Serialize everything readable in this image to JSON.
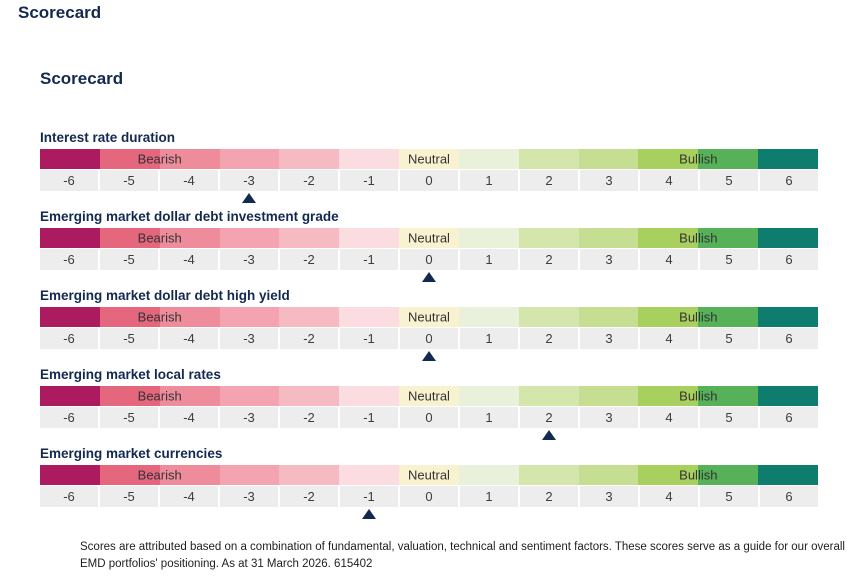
{
  "page": {
    "title": "Scorecard"
  },
  "section": {
    "title": "Scorecard"
  },
  "scale": {
    "min": -6,
    "max": 6,
    "ticks": [
      "-6",
      "-5",
      "-4",
      "-3",
      "-2",
      "-1",
      "0",
      "1",
      "2",
      "3",
      "4",
      "5",
      "6"
    ],
    "zones": [
      {
        "label": "Bearish",
        "span": [
          -5,
          -4
        ]
      },
      {
        "label": "Neutral",
        "span": [
          0,
          0
        ]
      },
      {
        "label": "Bullish",
        "span": [
          4,
          5
        ]
      }
    ],
    "segment_colors": [
      "#AC1A5F",
      "#E4677E",
      "#EE8C9B",
      "#F4A4B1",
      "#F6BAC3",
      "#FBDCE1",
      "#F9F2D0",
      "#E9F1DB",
      "#D5E6AC",
      "#C5DE92",
      "#A8D05F",
      "#56B158",
      "#0F7D6D"
    ],
    "tick_background": "#EDEDED",
    "marker_color": "#13294F",
    "heading_color": "#13294F"
  },
  "rows": [
    {
      "label": "Interest rate duration",
      "score": -3
    },
    {
      "label": "Emerging market dollar debt investment grade",
      "score": 0
    },
    {
      "label": "Emerging market dollar debt high yield",
      "score": 0
    },
    {
      "label": "Emerging market local rates",
      "score": 2
    },
    {
      "label": "Emerging market currencies",
      "score": -1
    }
  ],
  "footer": {
    "text": "Scores are attributed based on a combination of fundamental, valuation, technical and sentiment factors. These scores serve as a guide for our overall EMD portfolios' positioning. As at 31 March 2026. 615402"
  },
  "chart_data": {
    "type": "scatter",
    "title": "Scorecard",
    "categories": [
      "Interest rate duration",
      "Emerging market dollar debt investment grade",
      "Emerging market dollar debt high yield",
      "Emerging market local rates",
      "Emerging market currencies"
    ],
    "values": [
      -3,
      0,
      0,
      2,
      -1
    ],
    "xlim": [
      -6,
      6
    ],
    "x_ticks": [
      -6,
      -5,
      -4,
      -3,
      -2,
      -1,
      0,
      1,
      2,
      3,
      4,
      5,
      6
    ],
    "zone_labels": [
      "Bearish",
      "Neutral",
      "Bullish"
    ],
    "legend_position": "none",
    "grid": false
  }
}
